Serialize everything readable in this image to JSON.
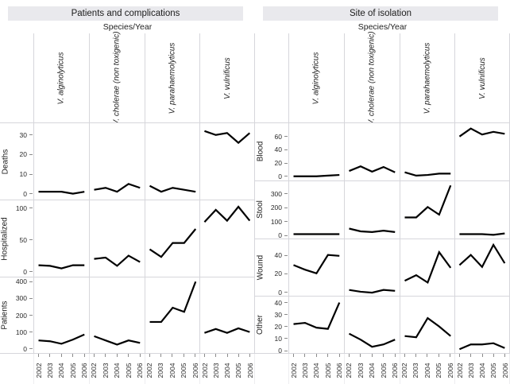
{
  "figure": {
    "left_title": "Patients and complications",
    "right_title": "Site of isolation",
    "shared_axis_title": "Species/Year",
    "line_color": "#000000",
    "strip_background": "#e9e9ed",
    "panel_border_color": "#d6d6db"
  },
  "chart_data": [
    {
      "type": "line",
      "title": "Patients and complications",
      "xlabel": "Species/Year",
      "legend": "none",
      "grid": "off",
      "x": [
        "2002",
        "2003",
        "2004",
        "2005",
        "2006"
      ],
      "columns": [
        "V. alginolyticus",
        "V. cholerae (non toxigenic)",
        "V. parahaemolyticus",
        "V. vulnificus"
      ],
      "rows": [
        {
          "label": "Deaths",
          "yticks": [
            0,
            10,
            20,
            30
          ],
          "ylim": [
            -3,
            36
          ],
          "series": [
            {
              "name": "V. alginolyticus",
              "values": [
                1,
                1,
                1,
                0,
                1
              ]
            },
            {
              "name": "V. cholerae (non toxigenic)",
              "values": [
                2,
                3,
                1,
                5,
                3
              ]
            },
            {
              "name": "V. parahaemolyticus",
              "values": [
                4,
                1,
                3,
                2,
                1
              ]
            },
            {
              "name": "V. vulnificus",
              "values": [
                32,
                30,
                31,
                26,
                31
              ]
            }
          ]
        },
        {
          "label": "Hospitalized",
          "yticks": [
            0,
            50,
            100
          ],
          "ylim": [
            -8,
            112
          ],
          "series": [
            {
              "name": "V. alginolyticus",
              "values": [
                10,
                9,
                5,
                10,
                10
              ]
            },
            {
              "name": "V. cholerae (non toxigenic)",
              "values": [
                20,
                22,
                9,
                25,
                15
              ]
            },
            {
              "name": "V. parahaemolyticus",
              "values": [
                35,
                23,
                45,
                45,
                67
              ]
            },
            {
              "name": "V. vulnificus",
              "values": [
                78,
                97,
                80,
                102,
                80
              ]
            }
          ]
        },
        {
          "label": "Patients",
          "yticks": [
            0,
            100,
            200,
            300,
            400
          ],
          "ylim": [
            -25,
            425
          ],
          "series": [
            {
              "name": "V. alginolyticus",
              "values": [
                50,
                45,
                30,
                55,
                85
              ]
            },
            {
              "name": "V. cholerae (non toxigenic)",
              "values": [
                75,
                50,
                25,
                50,
                35
              ]
            },
            {
              "name": "V. parahaemolyticus",
              "values": [
                160,
                160,
                245,
                220,
                400
              ]
            },
            {
              "name": "V. vulnificus",
              "values": [
                95,
                118,
                95,
                122,
                100
              ]
            }
          ]
        }
      ]
    },
    {
      "type": "line",
      "title": "Site of isolation",
      "xlabel": "Species/Year",
      "legend": "none",
      "grid": "off",
      "x": [
        "2002",
        "2003",
        "2004",
        "2005",
        "2006"
      ],
      "columns": [
        "V. alginolyticus",
        "V. cholerae (non toxigenic)",
        "V. parahaemolyticus",
        "V. vulnificus"
      ],
      "rows": [
        {
          "label": "Blood",
          "yticks": [
            0,
            20,
            40,
            60
          ],
          "ylim": [
            -6,
            80
          ],
          "series": [
            {
              "name": "V. alginolyticus",
              "values": [
                0,
                0,
                0,
                1,
                2
              ]
            },
            {
              "name": "V. cholerae (non toxigenic)",
              "values": [
                8,
                15,
                7,
                14,
                6
              ]
            },
            {
              "name": "V. parahaemolyticus",
              "values": [
                6,
                1,
                2,
                4,
                4
              ]
            },
            {
              "name": "V. vulnificus",
              "values": [
                60,
                72,
                63,
                67,
                64
              ]
            }
          ]
        },
        {
          "label": "Stool",
          "yticks": [
            0,
            100,
            200,
            300
          ],
          "ylim": [
            -20,
            390
          ],
          "series": [
            {
              "name": "V. alginolyticus",
              "values": [
                10,
                10,
                10,
                10,
                10
              ]
            },
            {
              "name": "V. cholerae (non toxigenic)",
              "values": [
                50,
                30,
                25,
                35,
                25
              ]
            },
            {
              "name": "V. parahaemolyticus",
              "values": [
                130,
                130,
                205,
                150,
                360
              ]
            },
            {
              "name": "V. vulnificus",
              "values": [
                10,
                10,
                10,
                5,
                15
              ]
            }
          ]
        },
        {
          "label": "Wound",
          "yticks": [
            0,
            20,
            40
          ],
          "ylim": [
            -4,
            58
          ],
          "series": [
            {
              "name": "V. alginolyticus",
              "values": [
                30,
                25,
                21,
                41,
                40
              ]
            },
            {
              "name": "V. cholerae (non toxigenic)",
              "values": [
                3,
                1,
                0,
                3,
                2
              ]
            },
            {
              "name": "V. parahaemolyticus",
              "values": [
                13,
                19,
                11,
                44,
                27
              ]
            },
            {
              "name": "V. vulnificus",
              "values": [
                30,
                41,
                28,
                52,
                32
              ]
            }
          ]
        },
        {
          "label": "Other",
          "yticks": [
            0,
            10,
            20,
            30,
            40
          ],
          "ylim": [
            -2,
            45
          ],
          "series": [
            {
              "name": "V. alginolyticus",
              "values": [
                22,
                23,
                19,
                18,
                40
              ]
            },
            {
              "name": "V. cholerae (non toxigenic)",
              "values": [
                14,
                9,
                3,
                5,
                9
              ]
            },
            {
              "name": "V. parahaemolyticus",
              "values": [
                12,
                11,
                27,
                20,
                12
              ]
            },
            {
              "name": "V. vulnificus",
              "values": [
                1,
                5,
                5,
                6,
                2
              ]
            }
          ]
        }
      ]
    }
  ]
}
